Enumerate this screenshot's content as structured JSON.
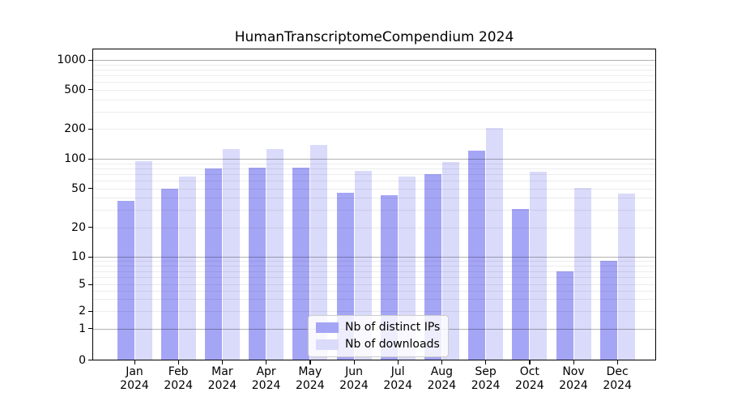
{
  "chart_data": {
    "type": "bar",
    "title": "HumanTranscriptomeCompendium 2024",
    "categories": [
      "Jan 2024",
      "Feb 2024",
      "Mar 2024",
      "Apr 2024",
      "May 2024",
      "Jun 2024",
      "Jul 2024",
      "Aug 2024",
      "Sep 2024",
      "Oct 2024",
      "Nov 2024",
      "Dec 2024"
    ],
    "series": [
      {
        "name": "Nb of distinct IPs",
        "color": "#a5a5f6",
        "values": [
          37,
          50,
          79,
          82,
          82,
          45,
          43,
          70,
          120,
          31,
          7,
          9
        ]
      },
      {
        "name": "Nb of downloads",
        "color": "#dadafb",
        "values": [
          94,
          66,
          125,
          126,
          137,
          76,
          66,
          92,
          205,
          74,
          51,
          44
        ]
      }
    ],
    "xlabel": "",
    "ylabel": "",
    "yscale": "symlog",
    "yticks": [
      0,
      1,
      2,
      5,
      10,
      20,
      50,
      100,
      200,
      500,
      1000
    ],
    "ylim": [
      0,
      1300
    ],
    "grid": "horizontal major and minor gridlines drawn over bars",
    "legend_position": "lower center"
  },
  "colors": {
    "background": "#ffffff",
    "axis": "#000000",
    "major_grid": "#b0b0b0",
    "minor_grid": "#ebebeb",
    "bar_dark": "#a5a5f6",
    "bar_light": "#dadafb"
  }
}
